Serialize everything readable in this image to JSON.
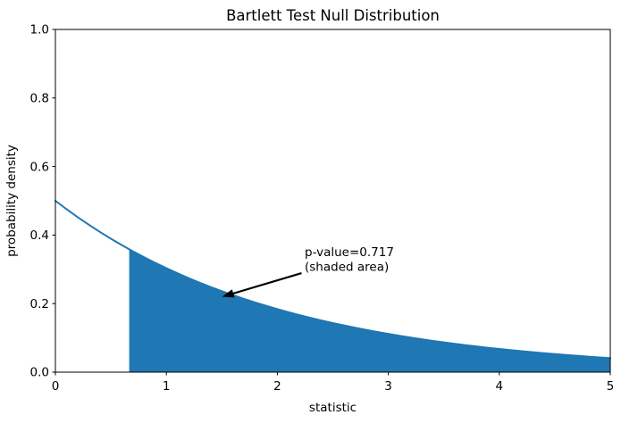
{
  "chart_data": {
    "type": "area",
    "title": "Bartlett Test Null Distribution",
    "xlabel": "statistic",
    "ylabel": "probability density",
    "xlim": [
      0,
      5
    ],
    "ylim": [
      0,
      1
    ],
    "xticks": [
      0,
      1,
      2,
      3,
      4,
      5
    ],
    "xticklabels": [
      "0",
      "1",
      "2",
      "3",
      "4",
      "5"
    ],
    "yticks": [
      0.0,
      0.2,
      0.4,
      0.6,
      0.8,
      1.0
    ],
    "yticklabels": [
      "0.0",
      "0.2",
      "0.4",
      "0.6",
      "0.8",
      "1.0"
    ],
    "grid": false,
    "legend": null,
    "line_color": "#1f77b4",
    "fill_color": "#1f77b4",
    "curve": {
      "x": [
        0.0,
        0.1,
        0.2,
        0.3,
        0.4,
        0.5,
        0.6,
        0.7,
        0.8,
        0.9,
        1.0,
        1.1,
        1.2,
        1.3,
        1.4,
        1.5,
        1.6,
        1.7,
        1.8,
        1.9,
        2.0,
        2.1,
        2.2,
        2.3,
        2.4,
        2.5,
        2.6,
        2.7,
        2.8,
        2.9,
        3.0,
        3.1,
        3.2,
        3.3,
        3.4,
        3.5,
        3.6,
        3.7,
        3.8,
        3.9,
        4.0,
        4.1,
        4.2,
        4.3,
        4.4,
        4.5,
        4.6,
        4.7,
        4.8,
        4.9,
        5.0
      ],
      "y": [
        0.5,
        0.4756,
        0.4524,
        0.4304,
        0.4094,
        0.3894,
        0.3704,
        0.3523,
        0.3352,
        0.3188,
        0.3033,
        0.2885,
        0.2744,
        0.261,
        0.2483,
        0.2362,
        0.2247,
        0.2137,
        0.2033,
        0.1934,
        0.1839,
        0.175,
        0.1664,
        0.1583,
        0.1506,
        0.1433,
        0.1363,
        0.1296,
        0.1233,
        0.1173,
        0.1116,
        0.1061,
        0.1009,
        0.096,
        0.0913,
        0.0869,
        0.0826,
        0.0786,
        0.0748,
        0.0711,
        0.0677,
        0.0644,
        0.0612,
        0.0582,
        0.0554,
        0.0527,
        0.0501,
        0.0477,
        0.0454,
        0.0431,
        0.041
      ]
    },
    "shaded_region": {
      "x_start": 0.665,
      "y_start": 0.3585,
      "x_end": 5.0,
      "p_value": 0.717
    },
    "annotation": {
      "lines": [
        "p-value=0.717",
        "(shaded area)"
      ],
      "arrow_tail_xy": [
        2.218,
        0.289
      ],
      "arrow_tip_xy": [
        1.503,
        0.22
      ],
      "arrow_color": "#000000"
    }
  }
}
